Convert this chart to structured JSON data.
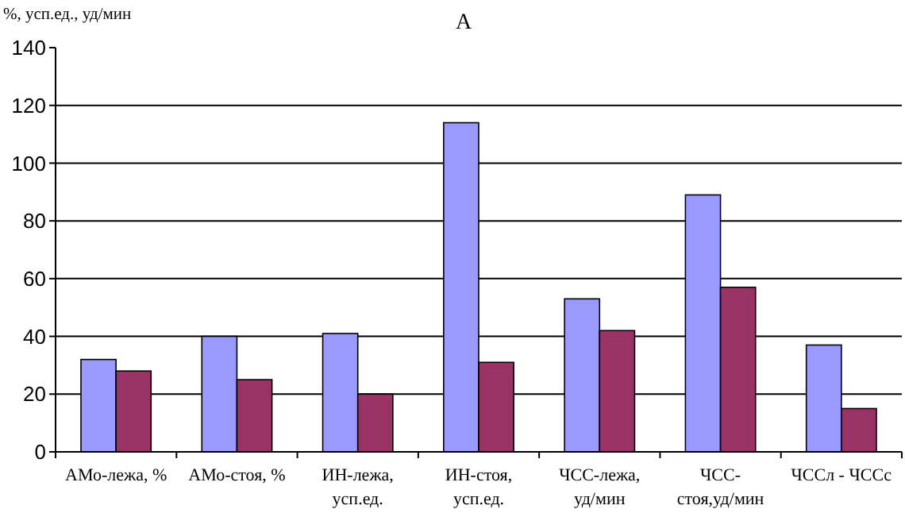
{
  "chart_data": {
    "type": "bar",
    "title": "А",
    "ylabel": "%, усп.ед., уд/мин",
    "categories": [
      "АМо-лежа, %",
      "АМо-стоя, %",
      "ИН-лежа, усп.ед.",
      "ИН-стоя, усп.ед.",
      "ЧСС-лежа, уд/мин",
      "ЧСС-стоя,уд/мин",
      "ЧССл - ЧССс"
    ],
    "series": [
      {
        "color": "#9999ff",
        "values": [
          32,
          40,
          41,
          114,
          53,
          89,
          37
        ]
      },
      {
        "color": "#993366",
        "values": [
          28,
          25,
          20,
          31,
          42,
          57,
          15
        ]
      }
    ],
    "ylim": [
      0,
      140
    ],
    "yticks": [
      0,
      20,
      40,
      60,
      80,
      100,
      120,
      140
    ],
    "grid": "y"
  }
}
